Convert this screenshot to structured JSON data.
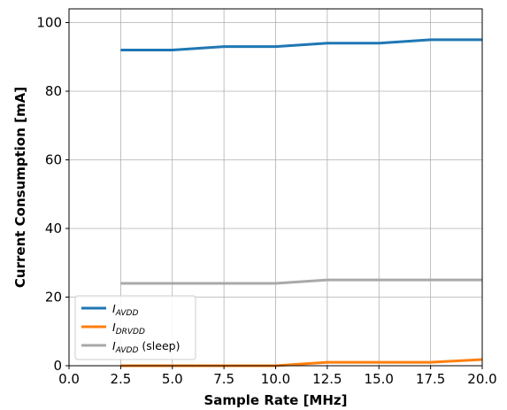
{
  "chart_data": {
    "type": "line",
    "title": "",
    "xlabel": "Sample Rate [MHz]",
    "ylabel": "Current Consumption [mA]",
    "xlim": [
      0,
      20
    ],
    "ylim": [
      0,
      104
    ],
    "xticks": [
      0.0,
      2.5,
      5.0,
      7.5,
      10.0,
      12.5,
      15.0,
      17.5,
      20.0
    ],
    "xtick_labels": [
      "0.0",
      "2.5",
      "5.0",
      "7.5",
      "10.0",
      "12.5",
      "15.0",
      "17.5",
      "20.0"
    ],
    "yticks": [
      0,
      20,
      40,
      60,
      80,
      100
    ],
    "ytick_labels": [
      "0",
      "20",
      "40",
      "60",
      "80",
      "100"
    ],
    "grid": true,
    "legend_position": "lower-left",
    "x": [
      2.5,
      5.0,
      7.5,
      10.0,
      12.5,
      15.0,
      17.5,
      20.0
    ],
    "series": [
      {
        "name": "I_AVDD",
        "legend": {
          "main": "I",
          "sub": "AVDD",
          "suffix": ""
        },
        "color": "#1f77b4",
        "values": [
          92,
          92,
          93,
          93,
          94,
          94,
          95,
          95
        ]
      },
      {
        "name": "I_DRVDD",
        "legend": {
          "main": "I",
          "sub": "DRVDD",
          "suffix": ""
        },
        "color": "#ff7f0e",
        "values": [
          0,
          0,
          0,
          0,
          1,
          1,
          1,
          1.8
        ]
      },
      {
        "name": "I_AVDD (sleep)",
        "legend": {
          "main": "I",
          "sub": "AVDD",
          "suffix": " (sleep)"
        },
        "color": "#a9a9a9",
        "values": [
          24,
          24,
          24,
          24,
          25,
          25,
          25,
          25
        ]
      }
    ]
  }
}
